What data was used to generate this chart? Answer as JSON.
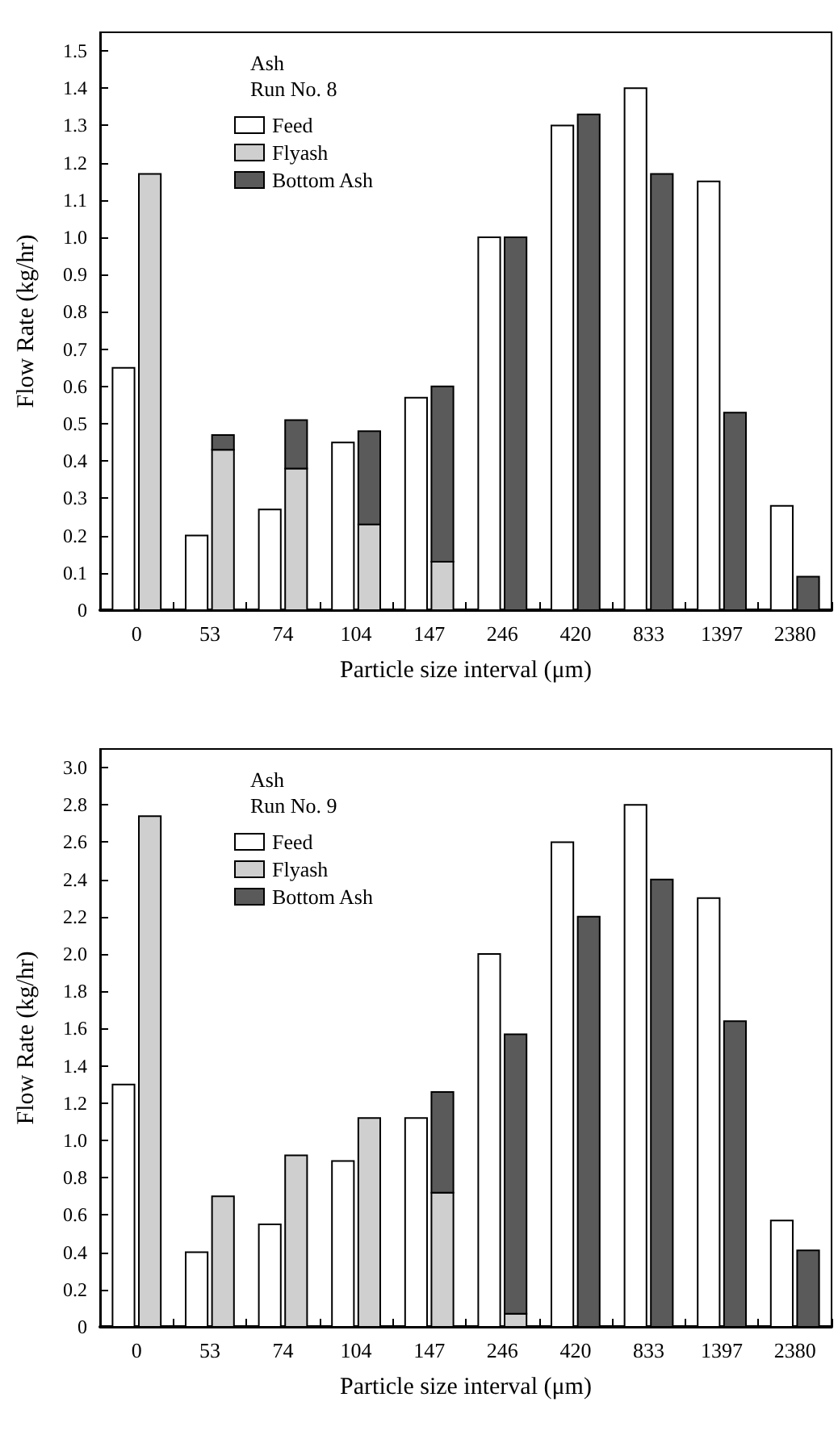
{
  "chart_data": [
    {
      "type": "bar",
      "legend": "top left",
      "legend_title": "Ash\nRun No. 8",
      "xlabel": "Particle size interval (μm)",
      "ylabel": "Flow Rate (kg/hr)",
      "grid": false,
      "categories": [
        "0",
        "53",
        "74",
        "104",
        "147",
        "246",
        "420",
        "833",
        "1397",
        "2380"
      ],
      "ylim": [
        0,
        1.55
      ],
      "yticks": [
        {
          "value": 0,
          "label": "0"
        },
        {
          "value": 0.1,
          "label": "0.1"
        },
        {
          "value": 0.2,
          "label": "0.2"
        },
        {
          "value": 0.3,
          "label": "0.3"
        },
        {
          "value": 0.4,
          "label": "0.4"
        },
        {
          "value": 0.5,
          "label": "0.5"
        },
        {
          "value": 0.6,
          "label": "0.6"
        },
        {
          "value": 0.7,
          "label": "0.7"
        },
        {
          "value": 0.8,
          "label": "0.8"
        },
        {
          "value": 0.9,
          "label": "0.9"
        },
        {
          "value": 1.0,
          "label": "1.0"
        },
        {
          "value": 1.1,
          "label": "1.1"
        },
        {
          "value": 1.2,
          "label": "1.2"
        },
        {
          "value": 1.3,
          "label": "1.3"
        },
        {
          "value": 1.4,
          "label": "1.4"
        },
        {
          "value": 1.5,
          "label": "1.5"
        }
      ],
      "series": [
        {
          "name": "Feed",
          "color": "#ffffff",
          "values": [
            0.65,
            0.2,
            0.27,
            0.45,
            0.57,
            1.0,
            1.3,
            1.4,
            1.15,
            0.28
          ]
        },
        {
          "name": "Flyash",
          "color": "#cfcfcf",
          "values": [
            1.17,
            0.43,
            0.38,
            0.23,
            0.13,
            0,
            0,
            0,
            0,
            0
          ]
        },
        {
          "name": "Bottom Ash",
          "color": "#5a5a5a",
          "base": [
            null,
            0.43,
            0.38,
            0.23,
            0.13,
            0,
            0,
            0,
            0,
            0
          ],
          "values": [
            0,
            0.04,
            0.13,
            0.25,
            0.47,
            1.0,
            1.33,
            1.17,
            0.53,
            0.09
          ]
        }
      ]
    },
    {
      "type": "bar",
      "legend": "top left",
      "legend_title": "Ash\nRun No. 9",
      "xlabel": "Particle size interval (μm)",
      "ylabel": "Flow Rate (kg/hr)",
      "grid": false,
      "categories": [
        "0",
        "53",
        "74",
        "104",
        "147",
        "246",
        "420",
        "833",
        "1397",
        "2380"
      ],
      "ylim": [
        0,
        3.1
      ],
      "yticks": [
        {
          "value": 0,
          "label": "0"
        },
        {
          "value": 0.2,
          "label": "0.2"
        },
        {
          "value": 0.4,
          "label": "0.4"
        },
        {
          "value": 0.6,
          "label": "0.6"
        },
        {
          "value": 0.8,
          "label": "0.8"
        },
        {
          "value": 1.0,
          "label": "1.0"
        },
        {
          "value": 1.2,
          "label": "1.2"
        },
        {
          "value": 1.4,
          "label": "1.4"
        },
        {
          "value": 1.6,
          "label": "1.6"
        },
        {
          "value": 1.8,
          "label": "1.8"
        },
        {
          "value": 2.0,
          "label": "2.0"
        },
        {
          "value": 2.2,
          "label": "2.2"
        },
        {
          "value": 2.4,
          "label": "2.4"
        },
        {
          "value": 2.6,
          "label": "2.6"
        },
        {
          "value": 2.8,
          "label": "2.8"
        },
        {
          "value": 3.0,
          "label": "3.0"
        }
      ],
      "series": [
        {
          "name": "Feed",
          "color": "#ffffff",
          "values": [
            1.3,
            0.4,
            0.55,
            0.89,
            1.12,
            2.0,
            2.6,
            2.8,
            2.3,
            0.57
          ]
        },
        {
          "name": "Flyash",
          "color": "#cfcfcf",
          "values": [
            2.74,
            0.7,
            0.92,
            1.12,
            0.72,
            0.07,
            0,
            0,
            0,
            0
          ]
        },
        {
          "name": "Bottom Ash",
          "color": "#5a5a5a",
          "base": [
            null,
            null,
            null,
            null,
            0.72,
            0.07,
            0,
            0,
            0,
            0
          ],
          "values": [
            0,
            0,
            0,
            0,
            0.54,
            1.5,
            2.2,
            2.4,
            1.64,
            0.41
          ]
        }
      ]
    }
  ]
}
